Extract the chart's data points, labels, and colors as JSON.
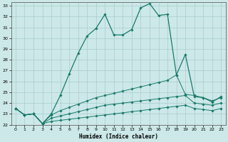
{
  "xlabel": "Humidex (Indice chaleur)",
  "bg_color": "#cce8e8",
  "grid_color": "#aacccc",
  "line_color": "#1a7a6a",
  "xmin": 0,
  "xmax": 23,
  "ymin": 22,
  "ymax": 33,
  "main_x": [
    0,
    1,
    2,
    3,
    4,
    5,
    6,
    7,
    8,
    9,
    10,
    11,
    12,
    13,
    14,
    15,
    16,
    17,
    18,
    19,
    20,
    21,
    22,
    23
  ],
  "main_y": [
    23.5,
    22.9,
    23.0,
    22.1,
    23.0,
    24.7,
    26.7,
    28.6,
    30.2,
    30.9,
    32.2,
    30.3,
    30.3,
    30.8,
    32.8,
    33.2,
    32.1,
    32.2,
    26.6,
    28.5,
    24.6,
    24.5,
    24.1,
    24.6
  ],
  "slow1_x": [
    0,
    1,
    2,
    3,
    4,
    5,
    6,
    7,
    8,
    9,
    10,
    11,
    12,
    13,
    14,
    15,
    16,
    17,
    18,
    19,
    20,
    21,
    22,
    23
  ],
  "slow1_y": [
    23.5,
    22.9,
    23.0,
    22.1,
    22.9,
    23.3,
    23.6,
    23.9,
    24.2,
    24.5,
    24.7,
    24.9,
    25.1,
    25.3,
    25.5,
    25.7,
    25.9,
    26.1,
    26.6,
    24.8,
    24.7,
    24.5,
    24.2,
    24.5
  ],
  "slow2_x": [
    0,
    1,
    2,
    3,
    4,
    5,
    6,
    7,
    8,
    9,
    10,
    11,
    12,
    13,
    14,
    15,
    16,
    17,
    18,
    19,
    20,
    21,
    22,
    23
  ],
  "slow2_y": [
    23.5,
    22.9,
    23.0,
    22.1,
    22.6,
    22.8,
    23.0,
    23.2,
    23.4,
    23.6,
    23.8,
    23.9,
    24.0,
    24.1,
    24.2,
    24.3,
    24.4,
    24.5,
    24.6,
    24.7,
    24.0,
    23.9,
    23.8,
    24.0
  ],
  "slow3_x": [
    0,
    1,
    2,
    3,
    4,
    5,
    6,
    7,
    8,
    9,
    10,
    11,
    12,
    13,
    14,
    15,
    16,
    17,
    18,
    19,
    20,
    21,
    22,
    23
  ],
  "slow3_y": [
    23.5,
    22.9,
    23.0,
    22.1,
    22.3,
    22.4,
    22.5,
    22.6,
    22.7,
    22.8,
    22.9,
    23.0,
    23.1,
    23.2,
    23.3,
    23.4,
    23.5,
    23.6,
    23.7,
    23.8,
    23.5,
    23.4,
    23.3,
    23.5
  ]
}
